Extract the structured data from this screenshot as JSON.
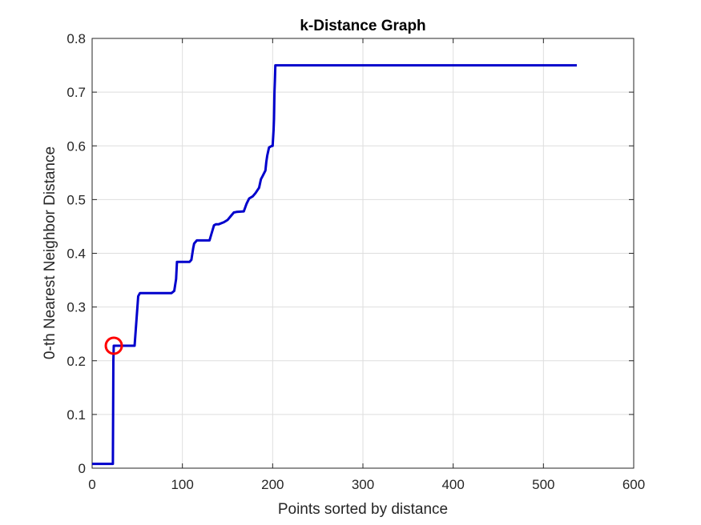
{
  "chart_data": {
    "type": "line",
    "title": "k-Distance Graph",
    "xlabel": "Points sorted by distance",
    "ylabel": "0-th Nearest Neighbor Distance",
    "xlim": [
      0,
      600
    ],
    "ylim": [
      0,
      0.8
    ],
    "xticks": [
      "0",
      "100",
      "200",
      "300",
      "400",
      "500",
      "600"
    ],
    "yticks": [
      "0",
      "0.1",
      "0.2",
      "0.3",
      "0.4",
      "0.5",
      "0.6",
      "0.7",
      "0.8"
    ],
    "grid": true,
    "series": [
      {
        "color": "#0000cc",
        "x": [
          0,
          23,
          23.5,
          24,
          45,
          47,
          51,
          53,
          88,
          91,
          93,
          94,
          108,
          110,
          112,
          113,
          116,
          118,
          130,
          132,
          135,
          137,
          140,
          146,
          150,
          154,
          157,
          160,
          168,
          171,
          174,
          178,
          181,
          185,
          187,
          189,
          192,
          193,
          194,
          196,
          199,
          200,
          201,
          201.5,
          202,
          202.5,
          203,
          537
        ],
        "y": [
          0.008,
          0.008,
          0.2,
          0.228,
          0.228,
          0.228,
          0.32,
          0.326,
          0.326,
          0.33,
          0.352,
          0.384,
          0.384,
          0.388,
          0.41,
          0.418,
          0.424,
          0.424,
          0.424,
          0.435,
          0.452,
          0.454,
          0.454,
          0.458,
          0.462,
          0.47,
          0.476,
          0.477,
          0.478,
          0.492,
          0.502,
          0.506,
          0.512,
          0.522,
          0.538,
          0.544,
          0.554,
          0.57,
          0.582,
          0.597,
          0.6,
          0.6,
          0.63,
          0.65,
          0.7,
          0.72,
          0.75,
          0.75
        ]
      }
    ],
    "marker": {
      "x": 24,
      "y": 0.228,
      "color": "#ff0000"
    }
  }
}
